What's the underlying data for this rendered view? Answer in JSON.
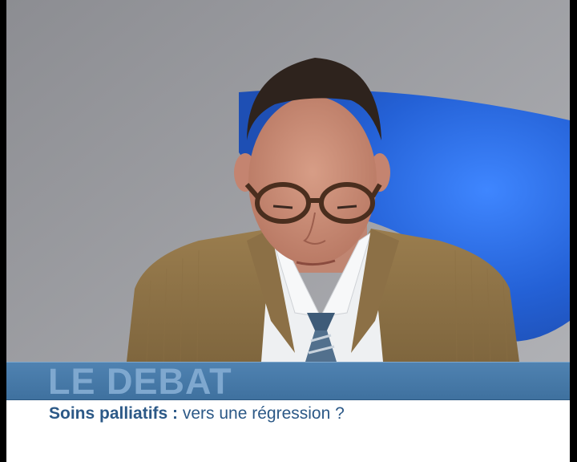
{
  "banner": {
    "title": "LE DEBAT",
    "subtitle_bold": "Soins palliatifs :",
    "subtitle_rest": " vers une régression ?"
  },
  "colors": {
    "banner_blue": "#4a7bab",
    "banner_title": "#7fa8cf",
    "subtitle_text": "#2c5987",
    "studio_backdrop": "#a9aaaf",
    "studio_blue_light": "#2f6de0"
  },
  "scene": {
    "subject": "presenter",
    "jacket": "tan corduroy jacket",
    "tie": "striped tie",
    "glasses": "tortoiseshell glasses"
  }
}
